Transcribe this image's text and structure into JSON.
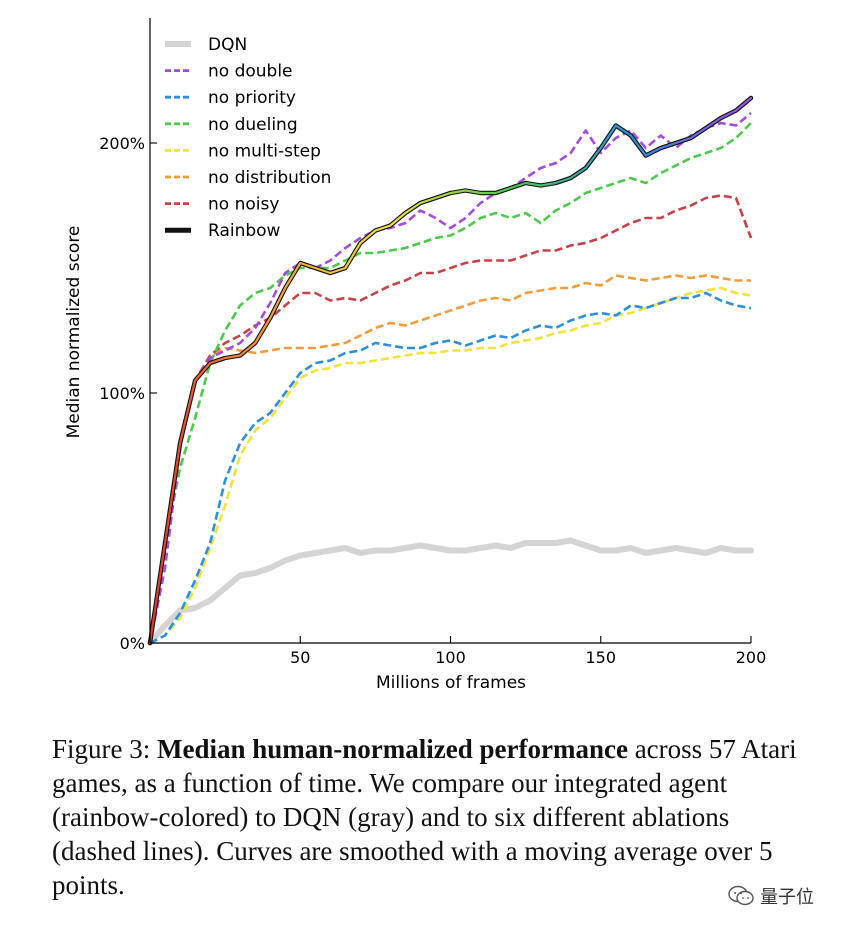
{
  "chart_data": {
    "type": "line",
    "xlabel": "Millions of frames",
    "ylabel": "Median normalized score",
    "xlim": [
      0,
      200
    ],
    "ylim": [
      0,
      250
    ],
    "x_ticks": [
      50,
      100,
      150,
      200
    ],
    "x_tick_labels": [
      "50",
      "100",
      "150",
      "200"
    ],
    "y_ticks": [
      0,
      100,
      200
    ],
    "y_tick_labels": [
      "0%",
      "100%",
      "200%"
    ],
    "legend_position": "top-left",
    "series": [
      {
        "name": "DQN",
        "color": "#d4d4d4",
        "style": "solid",
        "x": [
          0,
          5,
          10,
          15,
          20,
          25,
          30,
          35,
          40,
          45,
          50,
          55,
          60,
          65,
          70,
          75,
          80,
          85,
          90,
          95,
          100,
          105,
          110,
          115,
          120,
          125,
          130,
          135,
          140,
          145,
          150,
          155,
          160,
          165,
          170,
          175,
          180,
          185,
          190,
          195,
          200
        ],
        "y": [
          0,
          7,
          13,
          14,
          17,
          22,
          27,
          28,
          30,
          33,
          35,
          36,
          37,
          38,
          36,
          37,
          37,
          38,
          39,
          38,
          37,
          37,
          38,
          39,
          38,
          40,
          40,
          40,
          41,
          39,
          37,
          37,
          38,
          36,
          37,
          38,
          37,
          36,
          38,
          37,
          37
        ]
      },
      {
        "name": "no double",
        "color": "#a24ddc",
        "style": "dashed",
        "x": [
          0,
          5,
          10,
          15,
          20,
          25,
          30,
          35,
          40,
          45,
          50,
          55,
          60,
          65,
          70,
          75,
          80,
          85,
          90,
          95,
          100,
          105,
          110,
          115,
          120,
          125,
          130,
          135,
          140,
          145,
          150,
          155,
          160,
          165,
          170,
          175,
          180,
          185,
          190,
          195,
          200
        ],
        "y": [
          0,
          30,
          78,
          105,
          114,
          117,
          120,
          126,
          136,
          148,
          152,
          150,
          153,
          158,
          162,
          165,
          166,
          168,
          173,
          170,
          166,
          170,
          176,
          180,
          182,
          186,
          190,
          192,
          196,
          205,
          196,
          202,
          205,
          198,
          203,
          198,
          203,
          206,
          208,
          207,
          212
        ]
      },
      {
        "name": "no priority",
        "color": "#2e8fdf",
        "style": "dashed",
        "x": [
          0,
          5,
          10,
          15,
          20,
          25,
          30,
          35,
          40,
          45,
          50,
          55,
          60,
          65,
          70,
          75,
          80,
          85,
          90,
          95,
          100,
          105,
          110,
          115,
          120,
          125,
          130,
          135,
          140,
          145,
          150,
          155,
          160,
          165,
          170,
          175,
          180,
          185,
          190,
          195,
          200
        ],
        "y": [
          0,
          3,
          12,
          25,
          40,
          65,
          80,
          88,
          92,
          100,
          108,
          112,
          113,
          116,
          117,
          120,
          119,
          118,
          118,
          120,
          121,
          119,
          121,
          123,
          122,
          125,
          127,
          126,
          129,
          131,
          132,
          131,
          135,
          134,
          136,
          138,
          138,
          140,
          137,
          135,
          134
        ]
      },
      {
        "name": "no dueling",
        "color": "#4ec94e",
        "style": "dashed",
        "x": [
          0,
          5,
          10,
          15,
          20,
          25,
          30,
          35,
          40,
          45,
          50,
          55,
          60,
          65,
          70,
          75,
          80,
          85,
          90,
          95,
          100,
          105,
          110,
          115,
          120,
          125,
          130,
          135,
          140,
          145,
          150,
          155,
          160,
          165,
          170,
          175,
          180,
          185,
          190,
          195,
          200
        ],
        "y": [
          0,
          40,
          70,
          90,
          112,
          125,
          135,
          140,
          142,
          147,
          150,
          150,
          150,
          153,
          156,
          156,
          157,
          158,
          160,
          162,
          163,
          166,
          170,
          172,
          170,
          172,
          168,
          173,
          176,
          180,
          182,
          184,
          186,
          184,
          188,
          191,
          194,
          196,
          198,
          202,
          208
        ]
      },
      {
        "name": "no multi-step",
        "color": "#f2e23a",
        "style": "dashed",
        "x": [
          0,
          5,
          10,
          15,
          20,
          25,
          30,
          35,
          40,
          45,
          50,
          55,
          60,
          65,
          70,
          75,
          80,
          85,
          90,
          95,
          100,
          105,
          110,
          115,
          120,
          125,
          130,
          135,
          140,
          145,
          150,
          155,
          160,
          165,
          170,
          175,
          180,
          185,
          190,
          195,
          200
        ],
        "y": [
          0,
          3,
          10,
          22,
          38,
          55,
          75,
          85,
          90,
          98,
          106,
          109,
          110,
          112,
          112,
          113,
          114,
          115,
          116,
          116,
          117,
          117,
          118,
          118,
          120,
          121,
          122,
          124,
          125,
          127,
          128,
          131,
          132,
          134,
          136,
          138,
          140,
          141,
          142,
          140,
          139
        ]
      },
      {
        "name": "no distribution",
        "color": "#f39c3a",
        "style": "dashed",
        "x": [
          0,
          5,
          10,
          15,
          20,
          25,
          30,
          35,
          40,
          45,
          50,
          55,
          60,
          65,
          70,
          75,
          80,
          85,
          90,
          95,
          100,
          105,
          110,
          115,
          120,
          125,
          130,
          135,
          140,
          145,
          150,
          155,
          160,
          165,
          170,
          175,
          180,
          185,
          190,
          195,
          200
        ],
        "y": [
          0,
          40,
          80,
          105,
          115,
          118,
          117,
          116,
          117,
          118,
          118,
          118,
          119,
          120,
          123,
          126,
          128,
          127,
          129,
          131,
          133,
          135,
          137,
          138,
          137,
          140,
          141,
          142,
          142,
          144,
          143,
          147,
          146,
          145,
          146,
          147,
          146,
          147,
          146,
          145,
          145
        ]
      },
      {
        "name": "no noisy",
        "color": "#c9424a",
        "style": "dashed",
        "x": [
          0,
          5,
          10,
          15,
          20,
          25,
          30,
          35,
          40,
          45,
          50,
          55,
          60,
          65,
          70,
          75,
          80,
          85,
          90,
          95,
          100,
          105,
          110,
          115,
          120,
          125,
          130,
          135,
          140,
          145,
          150,
          155,
          160,
          165,
          170,
          175,
          180,
          185,
          190,
          195,
          200
        ],
        "y": [
          0,
          40,
          80,
          105,
          115,
          120,
          123,
          127,
          130,
          135,
          140,
          140,
          137,
          138,
          137,
          140,
          143,
          145,
          148,
          148,
          150,
          152,
          153,
          153,
          153,
          155,
          157,
          157,
          159,
          160,
          162,
          165,
          168,
          170,
          170,
          173,
          175,
          178,
          179,
          178,
          162
        ]
      },
      {
        "name": "Rainbow",
        "color": "rainbow",
        "style": "solid",
        "x": [
          0,
          5,
          10,
          15,
          20,
          25,
          30,
          35,
          40,
          45,
          50,
          55,
          60,
          65,
          70,
          75,
          80,
          85,
          90,
          95,
          100,
          105,
          110,
          115,
          120,
          125,
          130,
          135,
          140,
          145,
          150,
          155,
          160,
          165,
          170,
          175,
          180,
          185,
          190,
          195,
          200
        ],
        "y": [
          0,
          40,
          80,
          105,
          112,
          114,
          115,
          120,
          130,
          142,
          152,
          150,
          148,
          150,
          160,
          165,
          167,
          172,
          176,
          178,
          180,
          181,
          180,
          180,
          182,
          184,
          183,
          184,
          186,
          190,
          198,
          207,
          203,
          195,
          198,
          200,
          202,
          206,
          210,
          213,
          218
        ]
      }
    ],
    "rainbow_colors": [
      "#e6342c",
      "#f39c3a",
      "#f2e23a",
      "#4ec94e",
      "#2e8fdf",
      "#a24ddc"
    ]
  },
  "caption": {
    "prefix": "Figure 3: ",
    "bold": "Median human-normalized performance",
    "rest": " across 57 Atari games, as a function of time. We compare our integrated agent (rainbow-colored) to DQN (gray) and to six different ablations (dashed lines). Curves are smoothed with a moving average over 5 points."
  },
  "watermark": {
    "text": "量子位"
  }
}
